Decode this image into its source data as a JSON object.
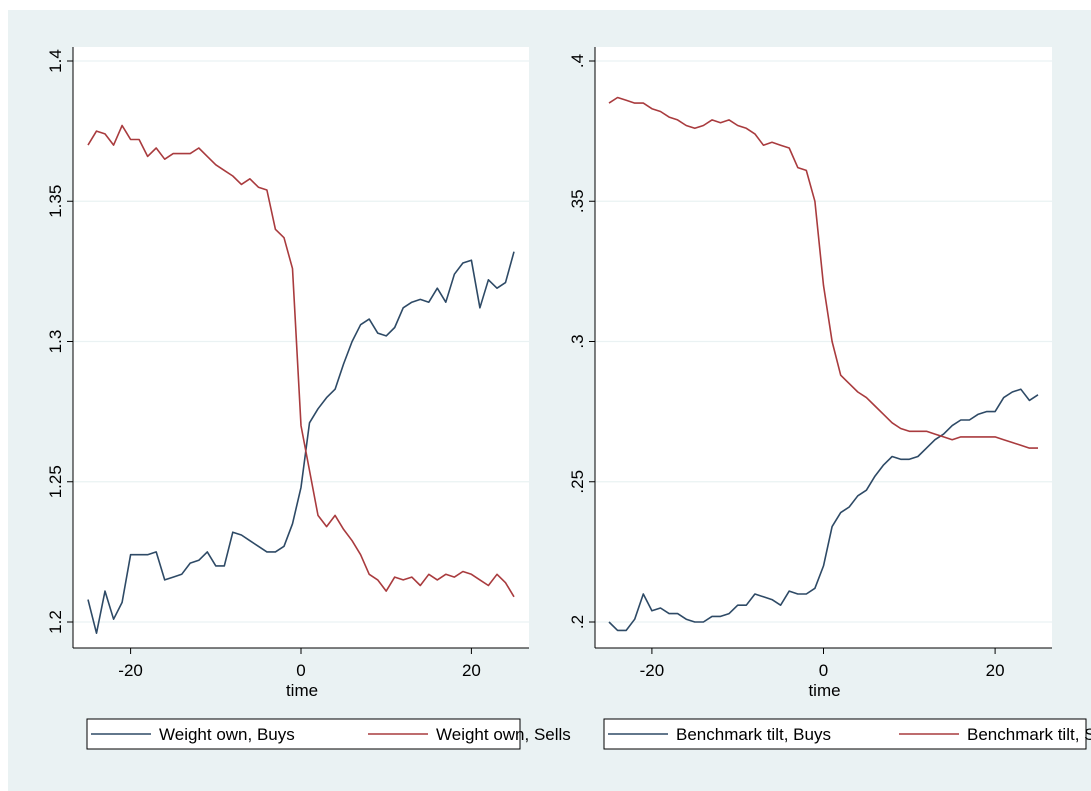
{
  "chart_data": [
    {
      "type": "line",
      "xlabel": "time",
      "ylabel": "",
      "xlim": [
        -25,
        25
      ],
      "ylim": [
        1.2,
        1.4
      ],
      "x_ticks": [
        -20,
        0,
        20
      ],
      "x_tick_labels": [
        "-20",
        "0",
        "20"
      ],
      "y_ticks": [
        1.2,
        1.25,
        1.3,
        1.35,
        1.4
      ],
      "y_tick_labels": [
        "1.2",
        "1.25",
        "1.3",
        "1.35",
        "1.4"
      ],
      "grid": true,
      "legend": "bottom",
      "x": [
        -25,
        -24,
        -23,
        -22,
        -21,
        -20,
        -19,
        -18,
        -17,
        -16,
        -15,
        -14,
        -13,
        -12,
        -11,
        -10,
        -9,
        -8,
        -7,
        -6,
        -5,
        -4,
        -3,
        -2,
        -1,
        0,
        1,
        2,
        3,
        4,
        5,
        6,
        7,
        8,
        9,
        10,
        11,
        12,
        13,
        14,
        15,
        16,
        17,
        18,
        19,
        20,
        21,
        22,
        23,
        24,
        25
      ],
      "series": [
        {
          "name": "Weight own, Buys",
          "color": "#2e4a66",
          "values": [
            1.208,
            1.196,
            1.211,
            1.201,
            1.207,
            1.224,
            1.224,
            1.224,
            1.225,
            1.215,
            1.216,
            1.217,
            1.221,
            1.222,
            1.225,
            1.22,
            1.22,
            1.232,
            1.231,
            1.229,
            1.227,
            1.225,
            1.225,
            1.227,
            1.235,
            1.248,
            1.271,
            1.276,
            1.28,
            1.283,
            1.292,
            1.3,
            1.306,
            1.308,
            1.303,
            1.302,
            1.305,
            1.312,
            1.314,
            1.315,
            1.314,
            1.319,
            1.314,
            1.324,
            1.328,
            1.329,
            1.312,
            1.322,
            1.319,
            1.321,
            1.332
          ]
        },
        {
          "name": "Weight own, Sells",
          "color": "#a93b3e",
          "values": [
            1.37,
            1.375,
            1.374,
            1.37,
            1.377,
            1.372,
            1.372,
            1.366,
            1.369,
            1.365,
            1.367,
            1.367,
            1.367,
            1.369,
            1.366,
            1.363,
            1.361,
            1.359,
            1.356,
            1.358,
            1.355,
            1.354,
            1.34,
            1.337,
            1.326,
            1.27,
            1.254,
            1.238,
            1.234,
            1.238,
            1.233,
            1.229,
            1.224,
            1.217,
            1.215,
            1.211,
            1.216,
            1.215,
            1.216,
            1.213,
            1.217,
            1.215,
            1.217,
            1.216,
            1.218,
            1.217,
            1.215,
            1.213,
            1.217,
            1.214,
            1.209
          ]
        }
      ]
    },
    {
      "type": "line",
      "xlabel": "time",
      "ylabel": "",
      "xlim": [
        -25,
        25
      ],
      "ylim": [
        0.2,
        0.4
      ],
      "x_ticks": [
        -20,
        0,
        20
      ],
      "x_tick_labels": [
        "-20",
        "0",
        "20"
      ],
      "y_ticks": [
        0.2,
        0.25,
        0.3,
        0.35,
        0.4
      ],
      "y_tick_labels": [
        ".2",
        ".25",
        ".3",
        ".35",
        ".4"
      ],
      "grid": true,
      "legend": "bottom",
      "x": [
        -25,
        -24,
        -23,
        -22,
        -21,
        -20,
        -19,
        -18,
        -17,
        -16,
        -15,
        -14,
        -13,
        -12,
        -11,
        -10,
        -9,
        -8,
        -7,
        -6,
        -5,
        -4,
        -3,
        -2,
        -1,
        0,
        1,
        2,
        3,
        4,
        5,
        6,
        7,
        8,
        9,
        10,
        11,
        12,
        13,
        14,
        15,
        16,
        17,
        18,
        19,
        20,
        21,
        22,
        23,
        24,
        25
      ],
      "series": [
        {
          "name": "Benchmark tilt, Buys",
          "color": "#2e4a66",
          "values": [
            0.2,
            0.197,
            0.197,
            0.201,
            0.21,
            0.204,
            0.205,
            0.203,
            0.203,
            0.201,
            0.2,
            0.2,
            0.202,
            0.202,
            0.203,
            0.206,
            0.206,
            0.21,
            0.209,
            0.208,
            0.206,
            0.211,
            0.21,
            0.21,
            0.212,
            0.22,
            0.234,
            0.239,
            0.241,
            0.245,
            0.247,
            0.252,
            0.256,
            0.259,
            0.258,
            0.258,
            0.259,
            0.262,
            0.265,
            0.267,
            0.27,
            0.272,
            0.272,
            0.274,
            0.275,
            0.275,
            0.28,
            0.282,
            0.283,
            0.279,
            0.281
          ]
        },
        {
          "name": "Benchmark tilt, Sells",
          "color": "#a93b3e",
          "values": [
            0.385,
            0.387,
            0.386,
            0.385,
            0.385,
            0.383,
            0.382,
            0.38,
            0.379,
            0.377,
            0.376,
            0.377,
            0.379,
            0.378,
            0.379,
            0.377,
            0.376,
            0.374,
            0.37,
            0.371,
            0.37,
            0.369,
            0.362,
            0.361,
            0.35,
            0.32,
            0.3,
            0.288,
            0.285,
            0.282,
            0.28,
            0.277,
            0.274,
            0.271,
            0.269,
            0.268,
            0.268,
            0.268,
            0.267,
            0.266,
            0.265,
            0.266,
            0.266,
            0.266,
            0.266,
            0.266,
            0.265,
            0.264,
            0.263,
            0.262,
            0.262
          ]
        }
      ]
    }
  ],
  "style": {
    "background": "#eaf2f3",
    "plot_background": "#ffffff",
    "grid_color": "#eaf2f3",
    "axis_color": "#000000"
  }
}
